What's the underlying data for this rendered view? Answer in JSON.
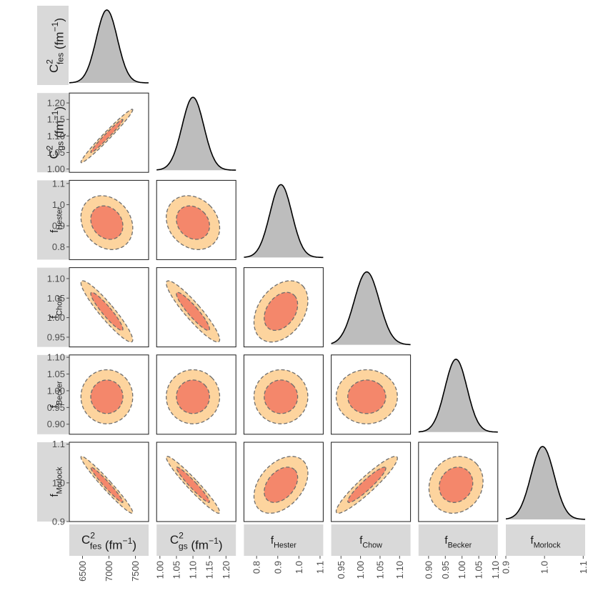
{
  "chart_data": {
    "type": "corner",
    "grid": false,
    "colors": {
      "strip": "#d9d9d9",
      "panel_border": "#1a1a1a",
      "density_fill": "#bdbdbd",
      "density_line": "#000000",
      "outer_region": "#fdd49e",
      "inner_region": "#f4876b",
      "contour_line": "#6e6e6e",
      "tick_text": "#4d4d4d"
    },
    "parameters": [
      {
        "id": "Cfes",
        "label": {
          "base": "C",
          "sup": "2",
          "sub": "fes",
          "suffix": " (fm",
          "suffix_sup": "−1",
          "suffix_end": ")"
        },
        "range": [
          6250,
          7750
        ],
        "ticks": [
          {
            "v": 6500,
            "label": "6500"
          },
          {
            "v": 7000,
            "label": "7000"
          },
          {
            "v": 7500,
            "label": "7500"
          }
        ],
        "mean": 6960,
        "sd": 200
      },
      {
        "id": "Cgs",
        "label": {
          "base": "C",
          "sup": "2",
          "sub": "gs",
          "suffix": " (fm",
          "suffix_sup": "−1",
          "suffix_end": ")"
        },
        "range": [
          0.99,
          1.23
        ],
        "ticks": [
          {
            "v": 1.0,
            "label": "1.00"
          },
          {
            "v": 1.05,
            "label": "1.05"
          },
          {
            "v": 1.1,
            "label": "1.10"
          },
          {
            "v": 1.15,
            "label": "1.15"
          },
          {
            "v": 1.2,
            "label": "1.20"
          }
        ],
        "mean": 1.1,
        "sd": 0.033
      },
      {
        "id": "fHester",
        "label": {
          "base": "f",
          "sub": "Hester"
        },
        "range": [
          0.74,
          1.115
        ],
        "ticks": [
          {
            "v": 0.8,
            "label": "0.8"
          },
          {
            "v": 0.9,
            "label": "0.9"
          },
          {
            "v": 1.0,
            "label": "1.0"
          },
          {
            "v": 1.1,
            "label": "1.1"
          }
        ],
        "mean": 0.915,
        "sd": 0.052
      },
      {
        "id": "fChow",
        "label": {
          "base": "f",
          "sub": "Chow"
        },
        "range": [
          0.925,
          1.128
        ],
        "ticks": [
          {
            "v": 0.95,
            "label": "0.95"
          },
          {
            "v": 1.0,
            "label": "1.00"
          },
          {
            "v": 1.05,
            "label": "1.05"
          },
          {
            "v": 1.1,
            "label": "1.10"
          }
        ],
        "mean": 1.016,
        "sd": 0.032
      },
      {
        "id": "fBecker",
        "label": {
          "base": "f",
          "sub": "Becker"
        },
        "range": [
          0.87,
          1.107
        ],
        "ticks": [
          {
            "v": 0.9,
            "label": "0.90"
          },
          {
            "v": 0.95,
            "label": "0.95"
          },
          {
            "v": 1.0,
            "label": "1.00"
          },
          {
            "v": 1.05,
            "label": "1.05"
          },
          {
            "v": 1.1,
            "label": "1.10"
          }
        ],
        "mean": 0.982,
        "sd": 0.033
      },
      {
        "id": "fMorlock",
        "label": {
          "base": "f",
          "sub": "Morlock"
        },
        "range": [
          0.9,
          1.105
        ],
        "ticks": [
          {
            "v": 0.9,
            "label": "0.9"
          },
          {
            "v": 1.0,
            "label": "1.0"
          },
          {
            "v": 1.1,
            "label": "1.1"
          }
        ],
        "mean": 0.995,
        "sd": 0.03
      }
    ],
    "correlations": [
      {
        "row": 1,
        "col": 0,
        "rho": 0.98
      },
      {
        "row": 2,
        "col": 0,
        "rho": -0.2
      },
      {
        "row": 2,
        "col": 1,
        "rho": -0.2
      },
      {
        "row": 3,
        "col": 0,
        "rho": -0.93
      },
      {
        "row": 3,
        "col": 1,
        "rho": -0.92
      },
      {
        "row": 3,
        "col": 2,
        "rho": 0.35
      },
      {
        "row": 4,
        "col": 0,
        "rho": 0.0
      },
      {
        "row": 4,
        "col": 1,
        "rho": 0.0
      },
      {
        "row": 4,
        "col": 2,
        "rho": 0.0
      },
      {
        "row": 4,
        "col": 3,
        "rho": 0.0
      },
      {
        "row": 5,
        "col": 0,
        "rho": -0.97
      },
      {
        "row": 5,
        "col": 1,
        "rho": -0.96
      },
      {
        "row": 5,
        "col": 2,
        "rho": 0.4
      },
      {
        "row": 5,
        "col": 3,
        "rho": 0.93
      },
      {
        "row": 5,
        "col": 4,
        "rho": 0.12
      }
    ]
  }
}
